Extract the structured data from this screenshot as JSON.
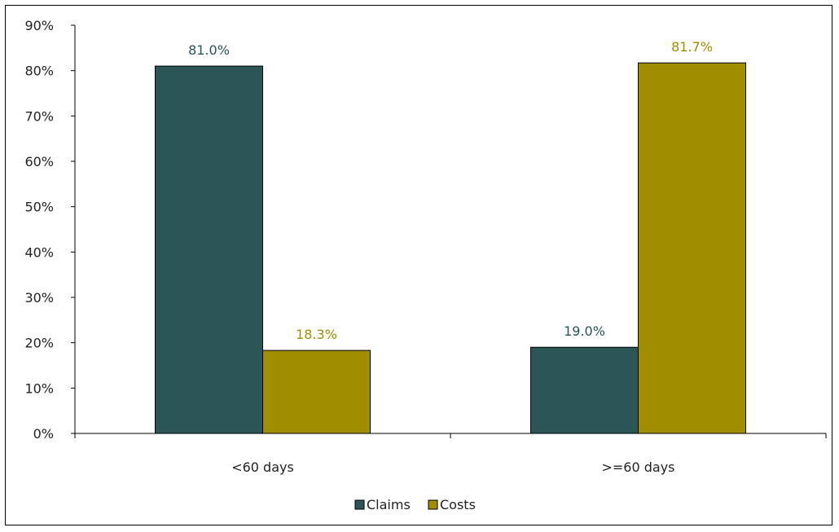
{
  "chart_data": {
    "type": "bar",
    "categories": [
      "<60 days",
      ">=60 days"
    ],
    "series": [
      {
        "name": "Claims",
        "values": [
          81.0,
          19.0
        ],
        "labels": [
          "81.0%",
          "19.0%"
        ],
        "color": "#2b5556"
      },
      {
        "name": "Costs",
        "values": [
          18.3,
          81.7
        ],
        "labels": [
          "18.3%",
          "81.7%"
        ],
        "color": "#a08e00"
      }
    ],
    "ylim": [
      0,
      90
    ],
    "y_ticks": [
      "0%",
      "10%",
      "20%",
      "30%",
      "40%",
      "50%",
      "60%",
      "70%",
      "80%",
      "90%"
    ],
    "y_tick_values": [
      0,
      10,
      20,
      30,
      40,
      50,
      60,
      70,
      80,
      90
    ],
    "grid": false,
    "legend_position": "bottom-center"
  }
}
